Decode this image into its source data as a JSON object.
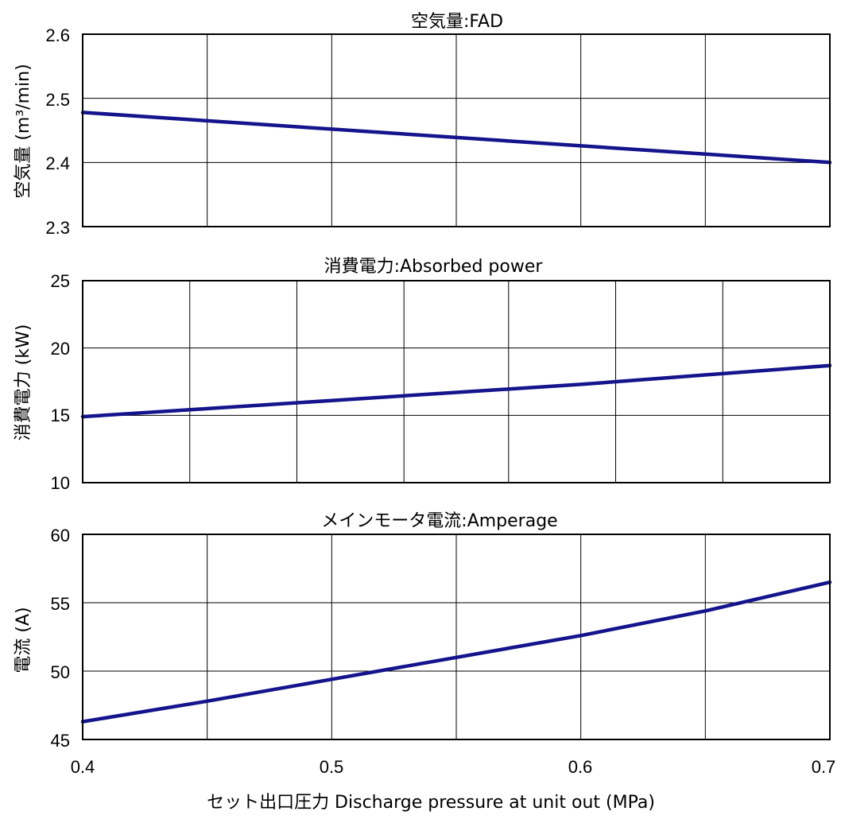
{
  "x_axis": {
    "label": "セット出口圧力 Discharge pressure at unit out (MPa)",
    "ticks": [
      "0.4",
      "0.5",
      "0.6",
      "0.7"
    ]
  },
  "line_color": "#14148c",
  "chart_data": [
    {
      "type": "line",
      "title": "空気量:FAD",
      "ylabel": "空気量 (m³/min)",
      "xlim": [
        0.4,
        0.7
      ],
      "ylim": [
        2.3,
        2.6
      ],
      "yticks": [
        "2.3",
        "2.4",
        "2.5",
        "2.6"
      ],
      "y_tick_values": [
        2.3,
        2.4,
        2.5,
        2.6
      ],
      "x_grid": [
        0.4,
        0.45,
        0.5,
        0.55,
        0.6,
        0.65,
        0.7
      ],
      "grid": true,
      "series": [
        {
          "x": [
            0.4,
            0.45,
            0.5,
            0.55,
            0.6,
            0.65,
            0.7
          ],
          "y": [
            2.478,
            2.465,
            2.452,
            2.439,
            2.426,
            2.413,
            2.4
          ]
        }
      ]
    },
    {
      "type": "line",
      "title": "消費電力:Absorbed power",
      "ylabel": "消費電力 (kW)",
      "xlim": [
        0.4,
        0.7
      ],
      "ylim": [
        10,
        25
      ],
      "yticks": [
        "10",
        "15",
        "20",
        "25"
      ],
      "y_tick_values": [
        10,
        15,
        20,
        25
      ],
      "x_grid": [
        0.4,
        0.443,
        0.486,
        0.529,
        0.571,
        0.614,
        0.657,
        0.7
      ],
      "grid": true,
      "series": [
        {
          "x": [
            0.4,
            0.45,
            0.5,
            0.55,
            0.6,
            0.65,
            0.7
          ],
          "y": [
            14.9,
            15.5,
            16.1,
            16.7,
            17.3,
            18.0,
            18.7
          ]
        }
      ]
    },
    {
      "type": "line",
      "title": "メインモータ電流:Amperage",
      "ylabel": "電流 (A)",
      "xlim": [
        0.4,
        0.7
      ],
      "ylim": [
        45,
        60
      ],
      "yticks": [
        "45",
        "50",
        "55",
        "60"
      ],
      "y_tick_values": [
        45,
        50,
        55,
        60
      ],
      "x_grid": [
        0.4,
        0.45,
        0.5,
        0.55,
        0.6,
        0.65,
        0.7
      ],
      "grid": true,
      "series": [
        {
          "x": [
            0.4,
            0.45,
            0.5,
            0.55,
            0.6,
            0.65,
            0.7
          ],
          "y": [
            46.3,
            47.8,
            49.4,
            51.0,
            52.6,
            54.4,
            56.5
          ]
        }
      ]
    }
  ]
}
